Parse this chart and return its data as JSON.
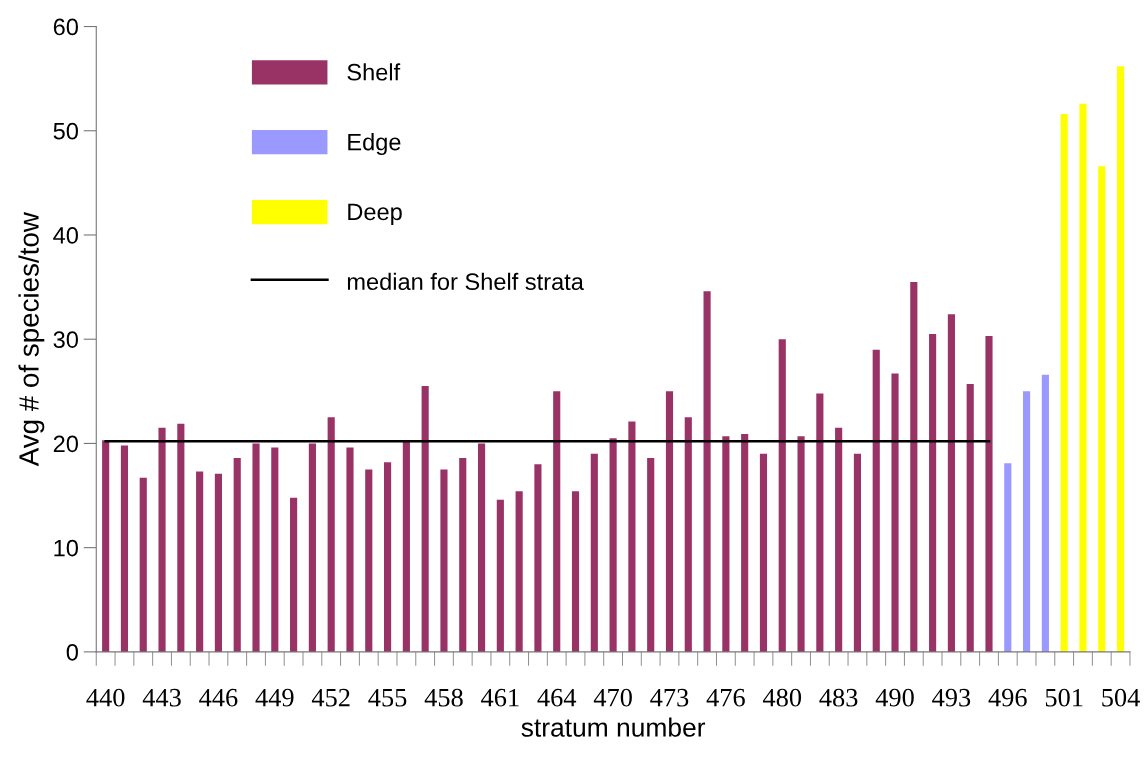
{
  "chart_data": {
    "type": "bar",
    "xlabel": "stratum number",
    "ylabel": "Avg # of species/tow",
    "categories": [
      "440",
      null,
      null,
      "443",
      null,
      null,
      "446",
      null,
      null,
      "449",
      null,
      null,
      "452",
      null,
      null,
      "455",
      null,
      null,
      "458",
      null,
      null,
      "461",
      null,
      null,
      "464",
      null,
      null,
      "470",
      null,
      null,
      "473",
      null,
      null,
      "476",
      null,
      null,
      "480",
      null,
      null,
      "483",
      null,
      null,
      "490",
      null,
      null,
      "493",
      null,
      null,
      "496",
      null,
      null,
      "501",
      null,
      null,
      "504"
    ],
    "series": [
      {
        "name": "Shelf",
        "color": "#993366",
        "values": [
          20.3,
          19.8,
          16.7,
          21.5,
          21.9,
          17.3,
          17.1,
          18.6,
          20.0,
          19.6,
          14.8,
          20.0,
          22.5,
          19.6,
          17.5,
          18.2,
          20.2,
          25.5,
          17.5,
          18.6,
          20.0,
          14.6,
          15.4,
          18.0,
          25.0,
          15.4,
          19.0,
          20.5,
          22.1,
          18.6,
          25.0,
          22.5,
          34.6,
          20.7,
          20.9,
          19.0,
          30.0,
          20.7,
          24.8,
          21.5,
          19.0,
          29.0,
          26.7,
          35.5,
          30.5,
          32.4,
          25.7,
          30.3,
          null,
          null,
          null,
          null,
          null,
          null,
          null
        ]
      },
      {
        "name": "Edge",
        "color": "#9999ff",
        "values": [
          null,
          null,
          null,
          null,
          null,
          null,
          null,
          null,
          null,
          null,
          null,
          null,
          null,
          null,
          null,
          null,
          null,
          null,
          null,
          null,
          null,
          null,
          null,
          null,
          null,
          null,
          null,
          null,
          null,
          null,
          null,
          null,
          null,
          null,
          null,
          null,
          null,
          null,
          null,
          null,
          null,
          null,
          null,
          null,
          null,
          null,
          null,
          null,
          18.1,
          25.0,
          26.6,
          null,
          null,
          null,
          null
        ]
      },
      {
        "name": "Deep",
        "color": "#ffff00",
        "values": [
          null,
          null,
          null,
          null,
          null,
          null,
          null,
          null,
          null,
          null,
          null,
          null,
          null,
          null,
          null,
          null,
          null,
          null,
          null,
          null,
          null,
          null,
          null,
          null,
          null,
          null,
          null,
          null,
          null,
          null,
          null,
          null,
          null,
          null,
          null,
          null,
          null,
          null,
          null,
          null,
          null,
          null,
          null,
          null,
          null,
          null,
          null,
          null,
          null,
          null,
          null,
          51.6,
          52.6,
          46.6,
          56.2
        ]
      },
      {
        "name": "median for Shelf strata",
        "type": "line",
        "color": "#000000",
        "values": [
          20.2,
          20.2,
          20.2,
          20.2,
          20.2,
          20.2,
          20.2,
          20.2,
          20.2,
          20.2,
          20.2,
          20.2,
          20.2,
          20.2,
          20.2,
          20.2,
          20.2,
          20.2,
          20.2,
          20.2,
          20.2,
          20.2,
          20.2,
          20.2,
          20.2,
          20.2,
          20.2,
          20.2,
          20.2,
          20.2,
          20.2,
          20.2,
          20.2,
          20.2,
          20.2,
          20.2,
          20.2,
          20.2,
          20.2,
          20.2,
          20.2,
          20.2,
          20.2,
          20.2,
          20.2,
          20.2,
          20.2,
          20.2,
          null,
          null,
          null,
          null,
          null,
          null,
          null
        ]
      }
    ],
    "ylim": [
      0,
      60
    ],
    "yticks": [
      0,
      10,
      20,
      30,
      40,
      50,
      60
    ],
    "grid": false,
    "legend": "top left",
    "marker": "none",
    "line_style": "solid"
  }
}
